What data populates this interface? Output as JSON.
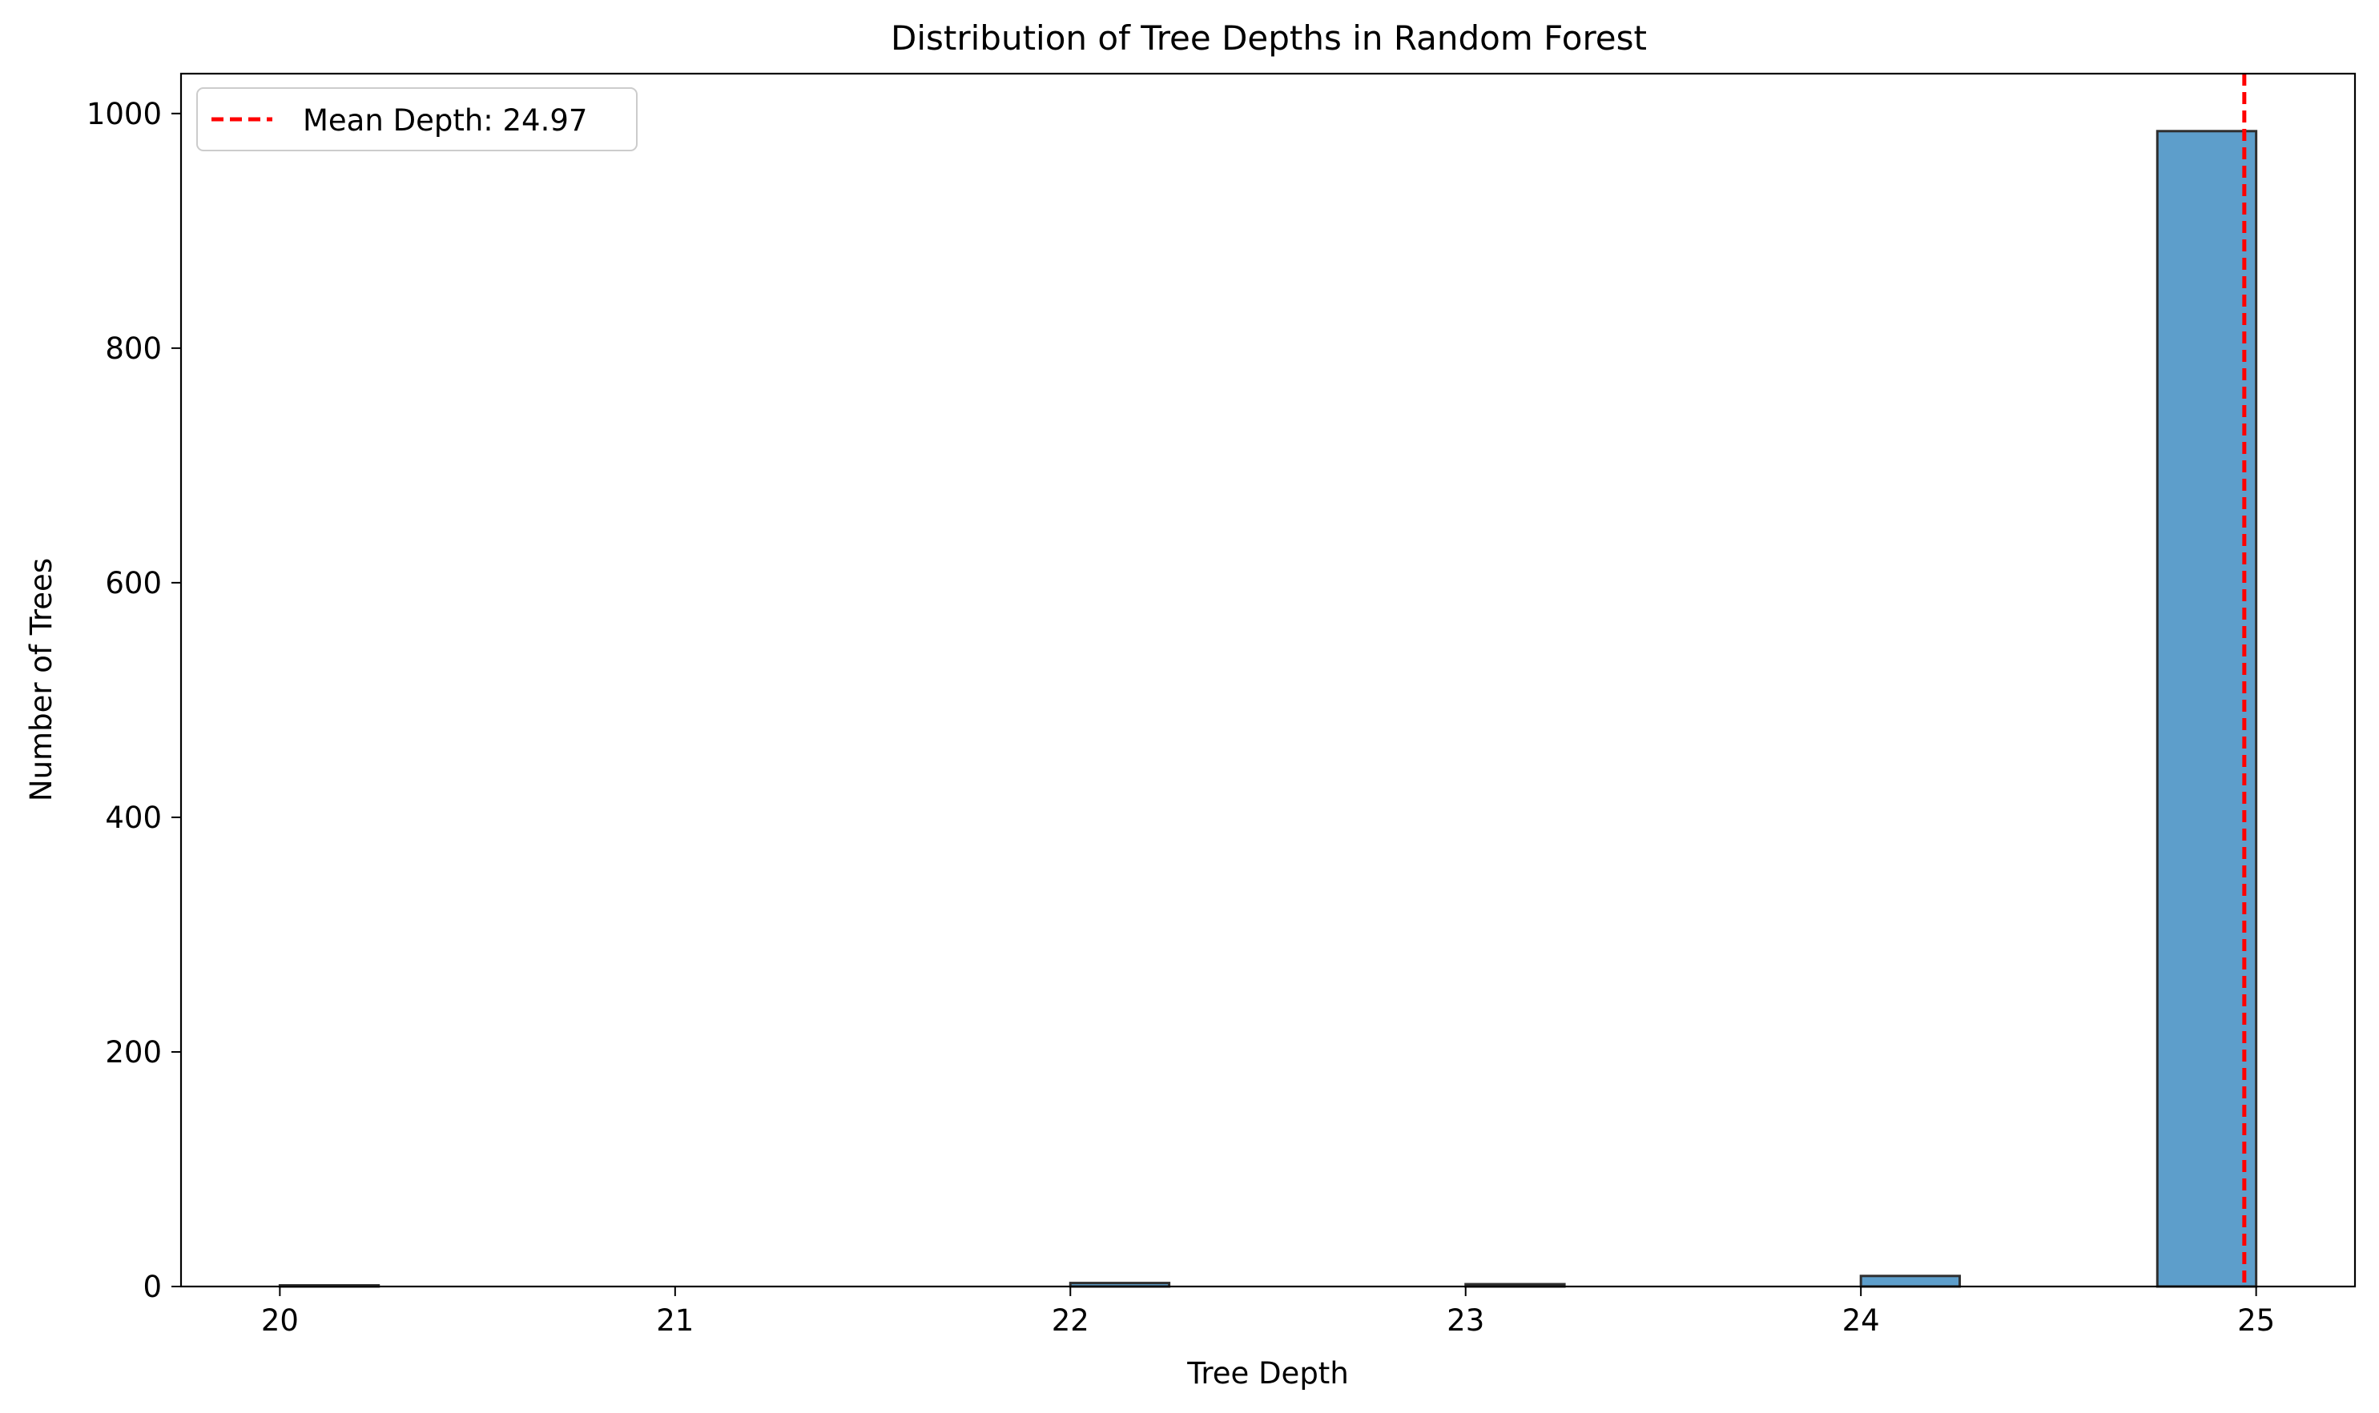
{
  "chart_data": {
    "type": "bar",
    "title": "Distribution of Tree Depths in Random Forest",
    "xlabel": "Tree Depth",
    "ylabel": "Number of Trees",
    "x_ticks": [
      "20",
      "21",
      "22",
      "23",
      "24",
      "25"
    ],
    "y_ticks": [
      "0",
      "200",
      "400",
      "600",
      "800",
      "1000"
    ],
    "xlim": [
      19.75,
      25.25
    ],
    "ylim": [
      0,
      1034
    ],
    "bins": [
      {
        "x_start": 20.0,
        "x_end": 20.25,
        "value": 1
      },
      {
        "x_start": 22.0,
        "x_end": 22.25,
        "value": 3
      },
      {
        "x_start": 23.0,
        "x_end": 23.25,
        "value": 2
      },
      {
        "x_start": 24.0,
        "x_end": 24.25,
        "value": 9
      },
      {
        "x_start": 24.75,
        "x_end": 25.0,
        "value": 985
      }
    ],
    "bar_color": "#5d9ecb",
    "bar_edge_color": "#2f2f2f",
    "mean_line": {
      "value": 24.97,
      "label": "Mean Depth: 24.97",
      "color": "#ff0000",
      "style": "dashed"
    },
    "legend_position": "top-left",
    "grid": false
  }
}
